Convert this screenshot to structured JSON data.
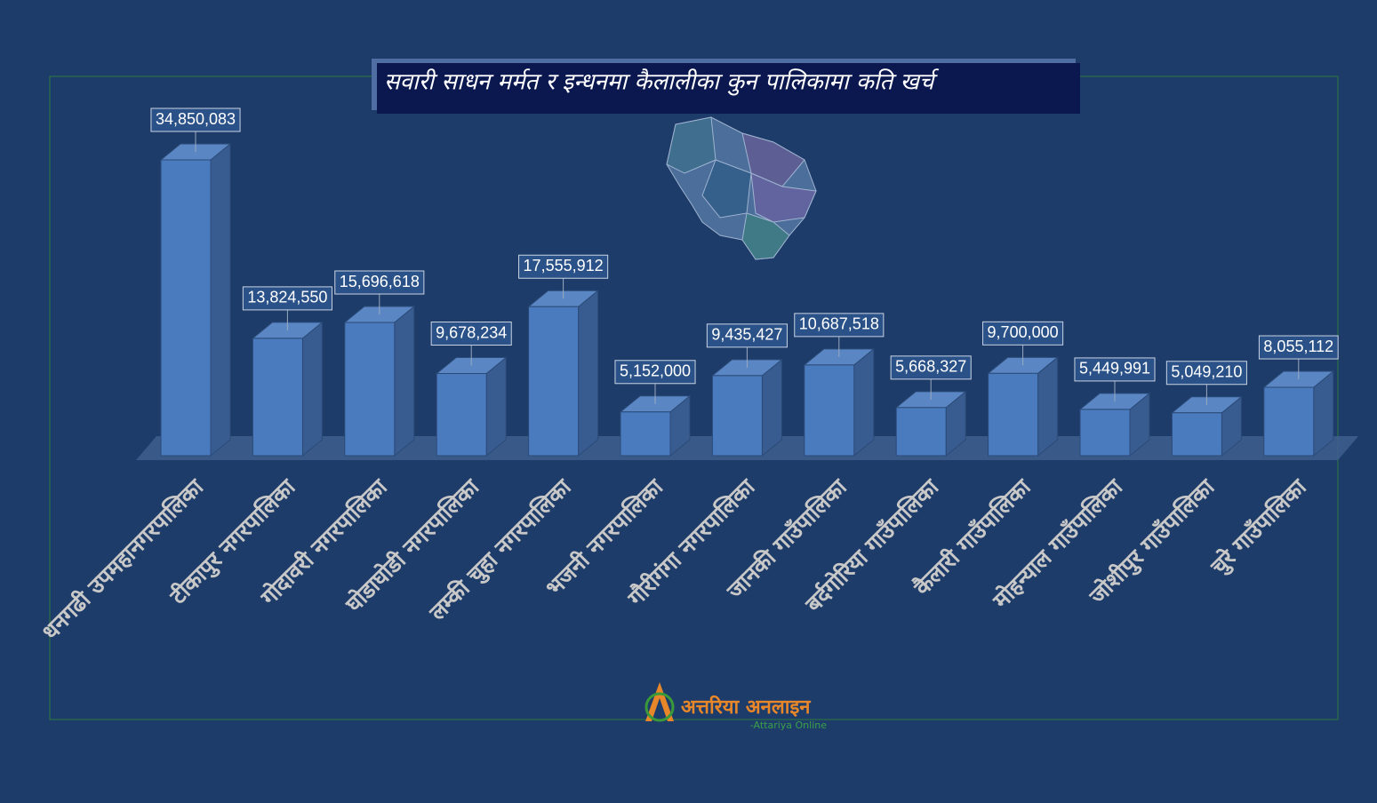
{
  "chart_data": {
    "type": "bar3d",
    "title": "सवारी साधन मर्मत र इन्धनमा कैलालीका कुन पालिकामा कति खर्च",
    "categories": [
      "धनगढी उपमहानगरपालिका",
      "टीकापुर नगरपालिका",
      "गोदावरी नगरपालिका",
      "घोडाघोडी नगरपालिका",
      "लम्की चुहा नगरपालिका",
      "भजनी नगरपालिका",
      "गौरीगंगा नगरपालिका",
      "जानकी गाउँपालिका",
      "बर्दगोरिया गाउँपालिका",
      "कैलारी गाउँपालिका",
      "मोहन्याल गाउँपालिका",
      "जोशीपुर गाउँपालिका",
      "चुरे गाउँपालिका"
    ],
    "values": [
      34850083,
      13824550,
      15696618,
      9678234,
      17555912,
      5152000,
      9435427,
      10687518,
      5668327,
      9700000,
      5449991,
      5049210,
      8055112
    ],
    "value_labels": [
      "34,850,083",
      "13,824,550",
      "15,696,618",
      "9,678,234",
      "17,555,912",
      "5,152,000",
      "9,435,427",
      "10,687,518",
      "5,668,327",
      "9,700,000",
      "5,449,991",
      "5,049,210",
      "8,055,112"
    ],
    "color": "#4a7bbf"
  },
  "logo": {
    "name": "अत्तरिया अनलाइन",
    "subtitle": "-Attariya Online"
  }
}
